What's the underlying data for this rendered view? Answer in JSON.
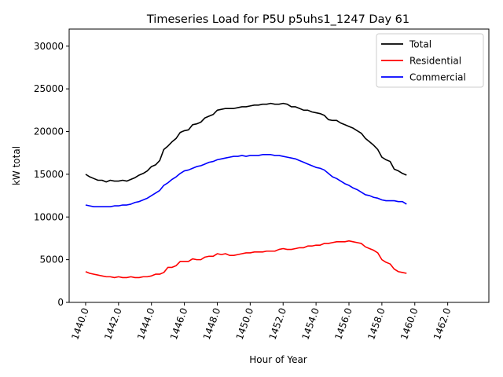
{
  "chart_data": {
    "type": "line",
    "title": "Timeseries Load for P5U p5uhs1_1247  Day 61",
    "xlabel": "Hour of Year",
    "ylabel": "kW total",
    "xlim": [
      1439.0,
      1464.5
    ],
    "ylim": [
      0,
      32000
    ],
    "xticks": [
      1440,
      1442,
      1444,
      1446,
      1448,
      1450,
      1452,
      1454,
      1456,
      1458,
      1460,
      1462
    ],
    "xtick_labels": [
      "1440.0",
      "1442.0",
      "1444.0",
      "1446.0",
      "1448.0",
      "1450.0",
      "1452.0",
      "1454.0",
      "1456.0",
      "1458.0",
      "1460.0",
      "1462.0"
    ],
    "yticks": [
      0,
      5000,
      10000,
      15000,
      20000,
      25000,
      30000
    ],
    "ytick_labels": [
      "0",
      "5000",
      "10000",
      "15000",
      "20000",
      "25000",
      "30000"
    ],
    "legend_position": "top-right",
    "x_start": 1440,
    "x_step": 0.25,
    "series": [
      {
        "name": "Total",
        "color": "#000000",
        "values": [
          15000,
          14700,
          14500,
          14300,
          14300,
          14100,
          14300,
          14200,
          14200,
          14300,
          14200,
          14400,
          14600,
          14900,
          15100,
          15400,
          15900,
          16100,
          16600,
          17900,
          18300,
          18800,
          19200,
          19900,
          20100,
          20200,
          20800,
          20900,
          21100,
          21600,
          21800,
          22000,
          22500,
          22600,
          22700,
          22700,
          22700,
          22800,
          22900,
          22900,
          23000,
          23100,
          23100,
          23200,
          23200,
          23300,
          23200,
          23200,
          23300,
          23200,
          22900,
          22900,
          22700,
          22500,
          22500,
          22300,
          22200,
          22100,
          21900,
          21400,
          21300,
          21300,
          21000,
          20800,
          20600,
          20400,
          20100,
          19800,
          19200,
          18800,
          18400,
          17900,
          17000,
          16700,
          16500,
          15600,
          15400,
          15100,
          14900
        ]
      },
      {
        "name": "Residential",
        "color": "#ff0000",
        "values": [
          3600,
          3400,
          3300,
          3200,
          3100,
          3000,
          3000,
          2900,
          3000,
          2900,
          2900,
          3000,
          2900,
          2900,
          3000,
          3000,
          3100,
          3300,
          3300,
          3500,
          4100,
          4100,
          4300,
          4800,
          4800,
          4800,
          5100,
          5000,
          5000,
          5300,
          5400,
          5400,
          5700,
          5600,
          5700,
          5500,
          5500,
          5600,
          5700,
          5800,
          5800,
          5900,
          5900,
          5900,
          6000,
          6000,
          6000,
          6200,
          6300,
          6200,
          6200,
          6300,
          6400,
          6400,
          6600,
          6600,
          6700,
          6700,
          6900,
          6900,
          7000,
          7100,
          7100,
          7100,
          7200,
          7100,
          7000,
          6900,
          6500,
          6300,
          6100,
          5800,
          5000,
          4700,
          4500,
          3900,
          3600,
          3500,
          3400
        ]
      },
      {
        "name": "Commercial",
        "color": "#0000ff",
        "values": [
          11400,
          11300,
          11200,
          11200,
          11200,
          11200,
          11200,
          11300,
          11300,
          11400,
          11400,
          11500,
          11700,
          11800,
          12000,
          12200,
          12500,
          12800,
          13100,
          13700,
          14000,
          14400,
          14700,
          15100,
          15400,
          15500,
          15700,
          15900,
          16000,
          16200,
          16400,
          16500,
          16700,
          16800,
          16900,
          17000,
          17100,
          17100,
          17200,
          17100,
          17200,
          17200,
          17200,
          17300,
          17300,
          17300,
          17200,
          17200,
          17100,
          17000,
          16900,
          16800,
          16600,
          16400,
          16200,
          16000,
          15800,
          15700,
          15500,
          15100,
          14700,
          14500,
          14200,
          13900,
          13700,
          13400,
          13200,
          12900,
          12600,
          12500,
          12300,
          12200,
          12000,
          11900,
          11900,
          11900,
          11800,
          11800,
          11500
        ]
      }
    ]
  }
}
